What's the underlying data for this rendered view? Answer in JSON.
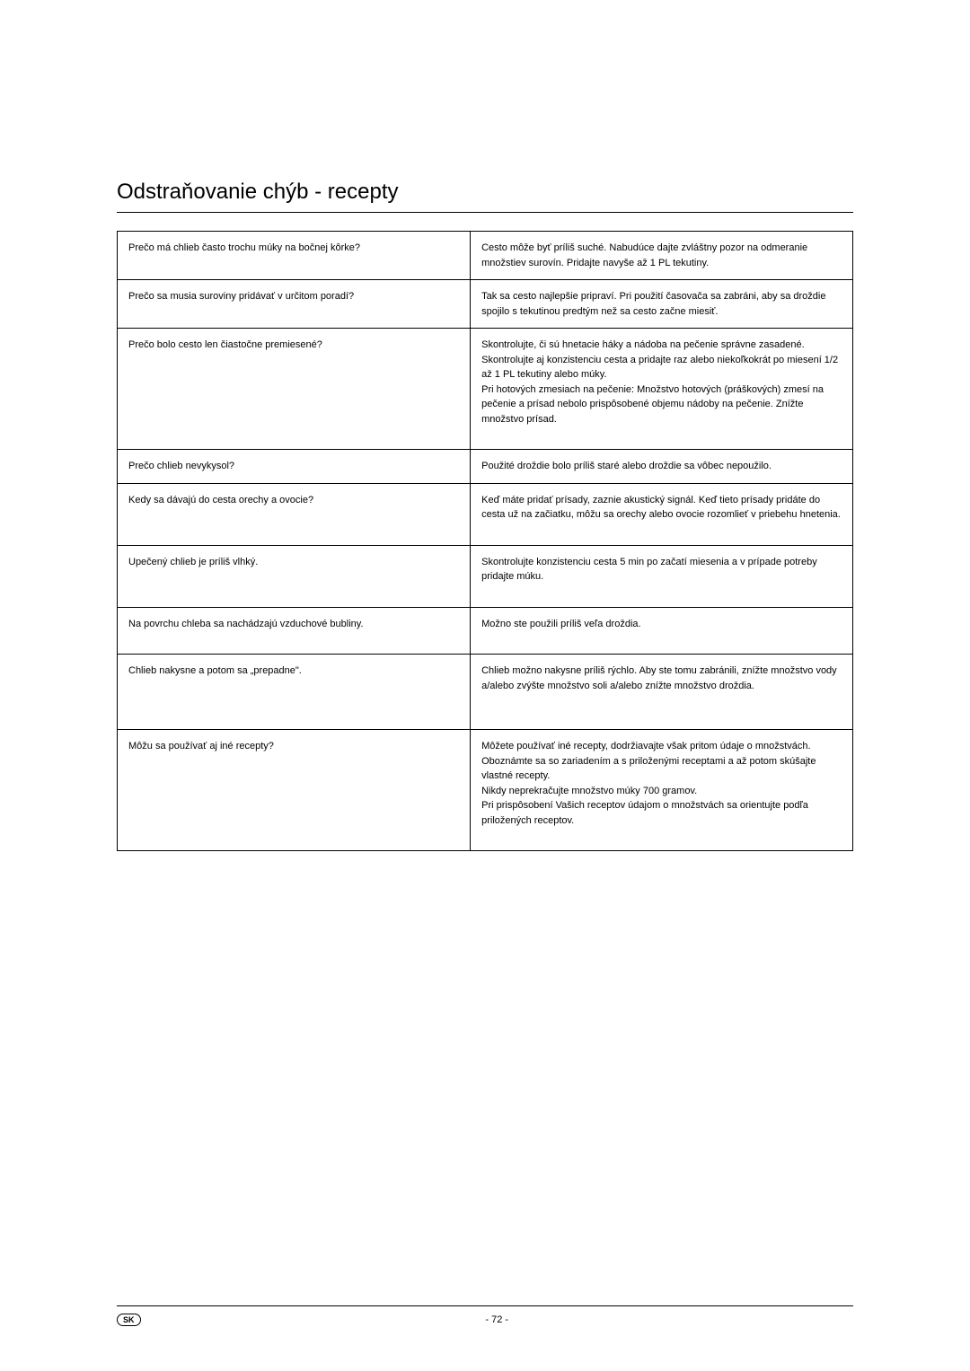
{
  "title": "Odstraňovanie chýb - recepty",
  "rows": [
    {
      "q": "Prečo má chlieb často trochu múky na bočnej kôrke?",
      "a": "Cesto môže byť príliš suché. Nabudúce dajte zvláštny pozor na odmeranie množstiev surovín. Pridajte navyše až 1 PL tekutiny.",
      "cls": ""
    },
    {
      "q": "Prečo sa musia suroviny pridávať v určitom poradí?",
      "a": "Tak sa cesto najlepšie pripraví. Pri použití časovača sa zabráni, aby sa droždie spojilo s tekutinou predtým než sa cesto začne miesiť.",
      "cls": ""
    },
    {
      "q": "Prečo bolo cesto len čiastočne premiesené?",
      "a": "Skontrolujte, či sú hnetacie háky a nádoba na pečenie správne zasadené. Skontrolujte aj konzistenciu cesta a pridajte raz alebo niekoľkokrát po miesení 1/2 až 1 PL tekutiny alebo múky.\nPri hotových zmesiach na pečenie: Množstvo hotových (práškových) zmesí na pečenie a prísad nebolo prispôsobené objemu nádoby na pečenie. Znížte množstvo prísad.",
      "cls": "medium-row"
    },
    {
      "q": "Prečo chlieb nevykysol?",
      "a": "Použité droždie bolo príliš staré alebo droždie sa vôbec nepoužilo.",
      "cls": ""
    },
    {
      "q": "Kedy sa dávajú do cesta orechy a ovocie?",
      "a": "Keď máte pridať prísady, zaznie akustický signál. Keď tieto prísady pridáte do cesta už na začiatku, môžu sa orechy alebo ovocie rozomlieť v priebehu hnetenia.",
      "cls": "medium-row"
    },
    {
      "q": "Upečený chlieb je príliš vlhký.",
      "a": "Skontrolujte konzistenciu cesta 5 min po začatí miesenia a v prípade potreby pridajte múku.",
      "cls": "medium-row"
    },
    {
      "q": "Na povrchu chleba sa nachádzajú vzduchové bubliny.",
      "a": "Možno ste použili príliš veľa droždia.",
      "cls": "medium-row"
    },
    {
      "q": "Chlieb nakysne a potom sa „prepadne\".",
      "a": "Chlieb možno nakysne príliš rýchlo. Aby ste tomu zabránili, znížte množstvo vody a/alebo zvýšte množstvo soli a/alebo znížte množstvo droždia.",
      "cls": "tall-row"
    },
    {
      "q": "Môžu sa používať aj iné recepty?",
      "a": "Môžete používať iné recepty, dodržiavajte však pritom údaje o množstvách. Oboznámte sa so zariadením a s priloženými receptami a až potom skúšajte vlastné recepty.\nNikdy neprekračujte množstvo múky 700 gramov.\nPri prispôsobení Vašich receptov údajom o množstvách sa orientujte podľa priložených receptov.",
      "cls": "medium-row"
    }
  ],
  "footer": {
    "lang": "SK",
    "page": "- 72 -"
  }
}
